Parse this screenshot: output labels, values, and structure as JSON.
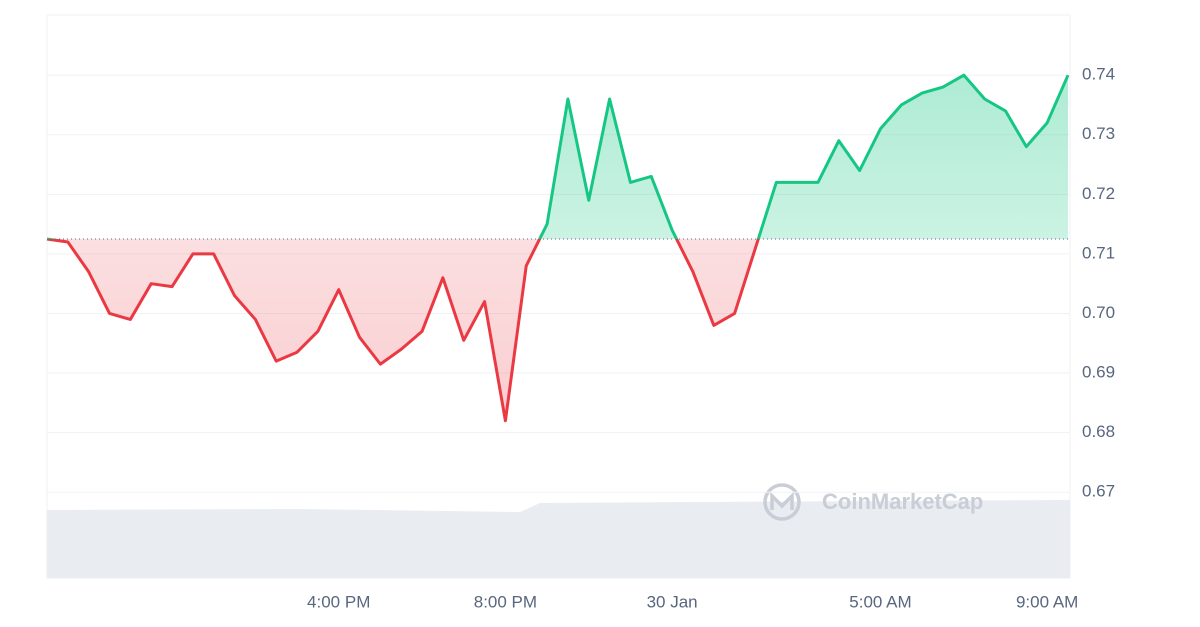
{
  "chart_data": {
    "type": "line",
    "categories": [
      null,
      null,
      null,
      null,
      null,
      null,
      null,
      null,
      null,
      null,
      null,
      null,
      null,
      null,
      "4:00 PM",
      null,
      null,
      null,
      null,
      null,
      null,
      null,
      "8:00 PM",
      null,
      null,
      null,
      null,
      null,
      null,
      null,
      "30 Jan",
      null,
      null,
      null,
      null,
      null,
      null,
      null,
      null,
      null,
      "5:00 AM",
      null,
      null,
      null,
      null,
      null,
      null,
      null,
      "9:00 AM",
      null
    ],
    "series": [
      {
        "values": [
          0.7125,
          0.712,
          0.707,
          0.7,
          0.699,
          0.705,
          0.7045,
          0.71,
          0.71,
          0.703,
          0.699,
          0.692,
          0.6935,
          0.697,
          0.704,
          0.696,
          0.6915,
          0.694,
          0.697,
          0.706,
          0.6955,
          0.702,
          0.682,
          0.708,
          0.715,
          0.736,
          0.719,
          0.736,
          0.722,
          0.723,
          0.714,
          0.707,
          0.698,
          0.7,
          0.711,
          0.722,
          0.722,
          0.722,
          0.729,
          0.724,
          0.731,
          0.735,
          0.737,
          0.738,
          0.74,
          0.736,
          0.734,
          0.728,
          0.732,
          0.74
        ]
      }
    ],
    "baseline": 0.7125,
    "up_color": "#16c784",
    "down_color": "#ea3943",
    "ylim": [
      0.6556,
      0.7501
    ],
    "yticks": [
      0.67,
      0.68,
      0.69,
      {
        "value": 0.7,
        "label": "0.70"
      },
      0.71,
      0.72,
      0.73,
      0.74
    ],
    "grid": true,
    "watermark": "CoinMarketCap"
  }
}
